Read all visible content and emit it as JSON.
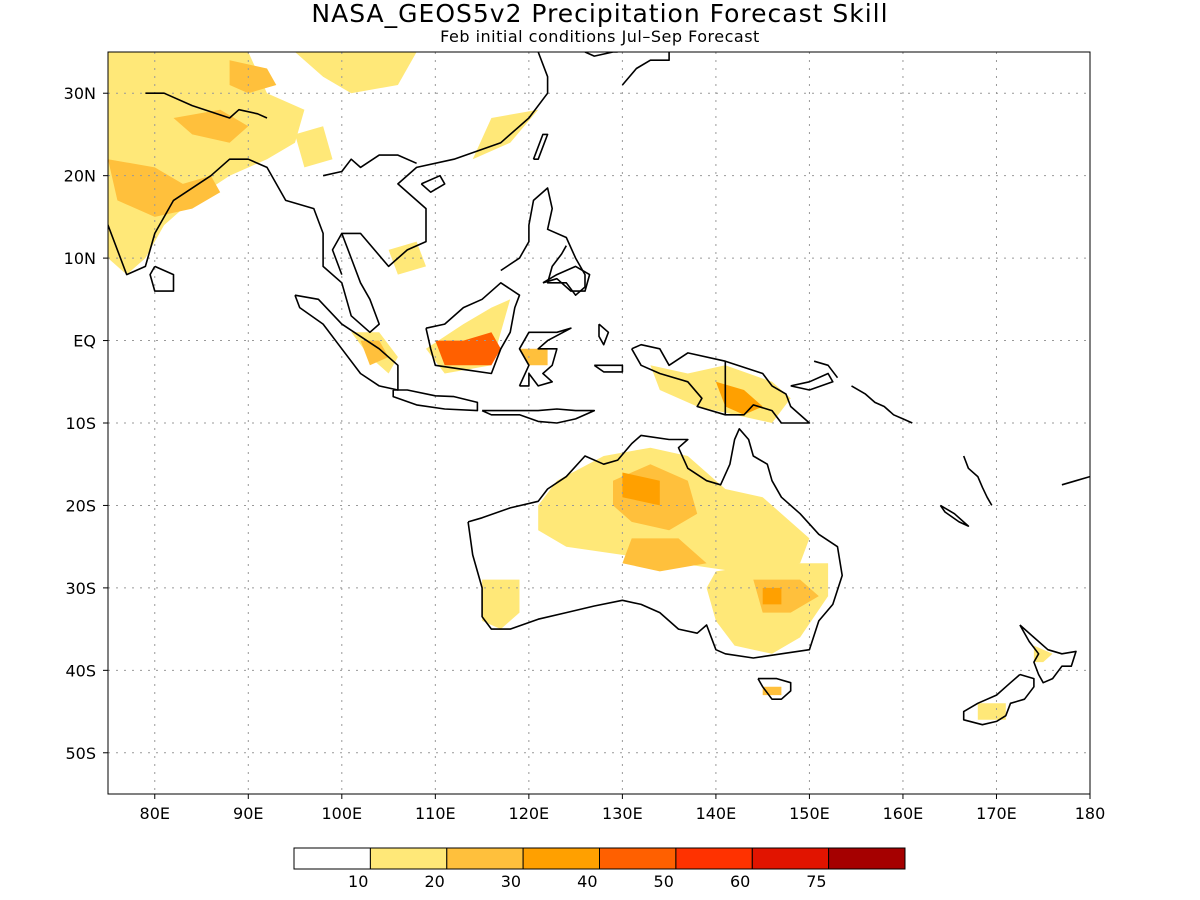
{
  "title": "NASA_GEOS5v2 Precipitation Forecast Skill",
  "subtitle": "Feb initial conditions  Jul–Sep Forecast",
  "map": {
    "lon_range": [
      75,
      180
    ],
    "lat_range": [
      -55,
      35
    ],
    "lon_ticks": [
      {
        "value": 80,
        "label": "80E"
      },
      {
        "value": 90,
        "label": "90E"
      },
      {
        "value": 100,
        "label": "100E"
      },
      {
        "value": 110,
        "label": "110E"
      },
      {
        "value": 120,
        "label": "120E"
      },
      {
        "value": 130,
        "label": "130E"
      },
      {
        "value": 140,
        "label": "140E"
      },
      {
        "value": 150,
        "label": "150E"
      },
      {
        "value": 160,
        "label": "160E"
      },
      {
        "value": 170,
        "label": "170E"
      },
      {
        "value": 180,
        "label": "180"
      }
    ],
    "lat_ticks": [
      {
        "value": 30,
        "label": "30N"
      },
      {
        "value": 20,
        "label": "20N"
      },
      {
        "value": 10,
        "label": "10N"
      },
      {
        "value": 0,
        "label": "EQ"
      },
      {
        "value": -10,
        "label": "10S"
      },
      {
        "value": -20,
        "label": "20S"
      },
      {
        "value": -30,
        "label": "30S"
      },
      {
        "value": -40,
        "label": "40S"
      },
      {
        "value": -50,
        "label": "50S"
      }
    ],
    "grid": "dotted"
  },
  "colorbar": {
    "colors": [
      "#ffffff",
      "#ffe878",
      "#ffc03c",
      "#ffa000",
      "#ff6000",
      "#ff3200",
      "#e11400",
      "#a50000"
    ],
    "labels": [
      "10",
      "20",
      "30",
      "40",
      "50",
      "60",
      "75"
    ]
  }
}
